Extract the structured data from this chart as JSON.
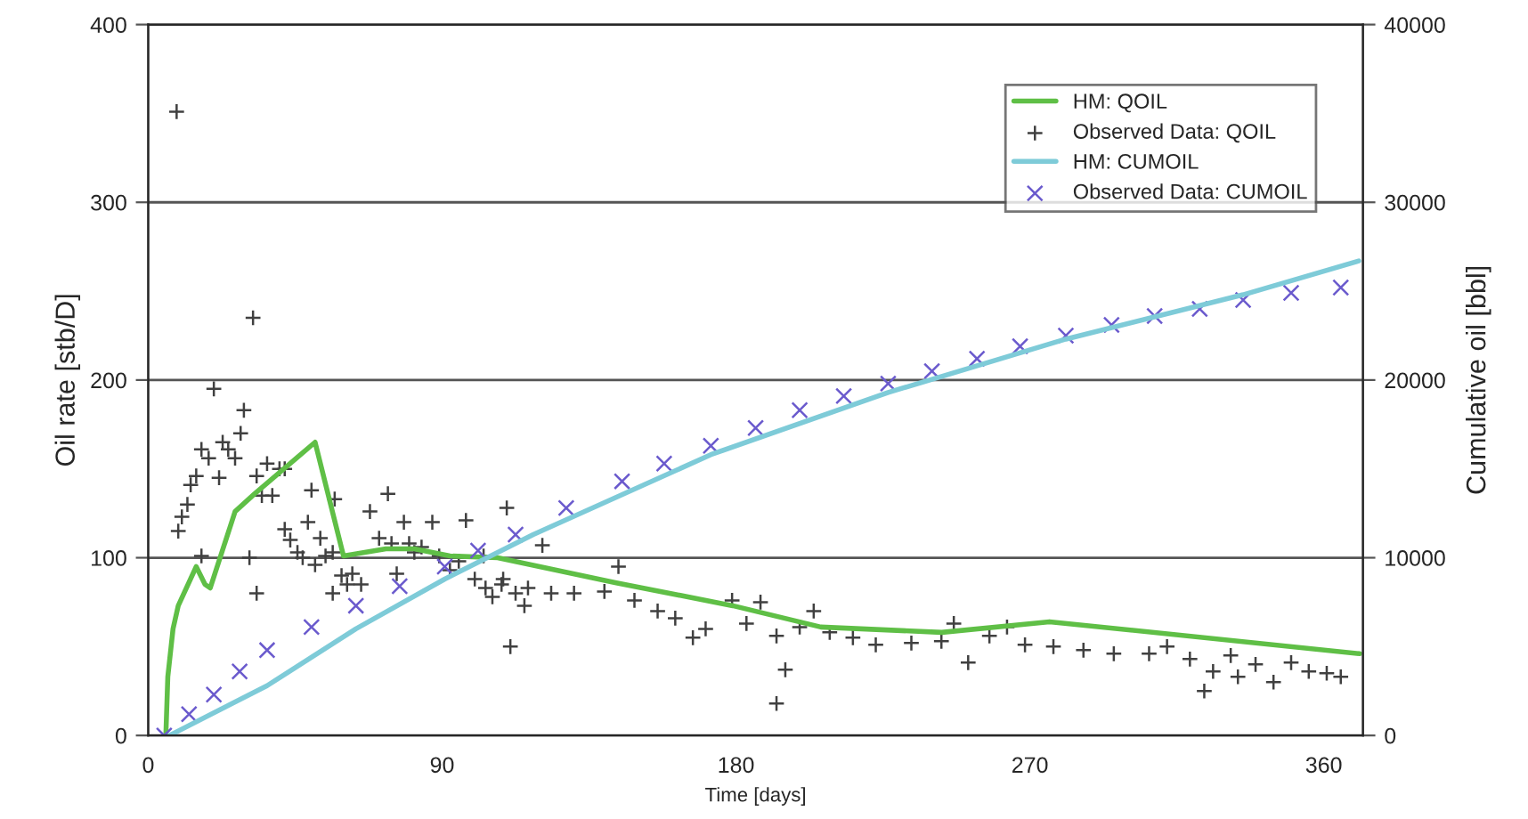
{
  "chart_data": {
    "type": "line",
    "xlabel": "Time [days]",
    "ylabel": "Oil rate [stb/D]",
    "y2label": "Cumulative oil [bbl]",
    "xlim": [
      0,
      372
    ],
    "xticks": [
      0,
      90,
      180,
      270,
      360
    ],
    "ylim": [
      0,
      400
    ],
    "yticks": [
      0,
      100,
      200,
      300,
      400
    ],
    "y2lim": [
      0,
      40000
    ],
    "y2ticks": [
      0,
      10000,
      20000,
      30000,
      40000
    ],
    "grid": "y",
    "legend": "top right",
    "series": [
      {
        "name": "HM: QOIL",
        "color": "#5fbf46",
        "marker": "none",
        "x": [
          5.4,
          6,
          7.6,
          9.2,
          14.7,
          17.4,
          19,
          26.6,
          32.6,
          51.1,
          59.8,
          72.8,
          81.5,
          92.4,
          107,
          143,
          179,
          206,
          243,
          276,
          371
        ],
        "values": [
          0,
          33,
          60,
          73,
          95,
          85,
          83,
          126,
          136,
          165,
          101,
          105,
          105,
          101,
          100,
          86,
          73,
          61,
          58,
          64,
          46
        ]
      },
      {
        "name": "Observed Data: QOIL",
        "type": "scatter",
        "color": "#404040",
        "marker": "cross",
        "x": [
          8.7,
          9.2,
          10.3,
          12,
          13,
          14.7,
          16.3,
          16.3,
          18.5,
          20.1,
          21.7,
          22.8,
          24.5,
          26.6,
          28.3,
          29.3,
          32.1,
          31,
          33.2,
          33.2,
          34.8,
          36.4,
          38,
          40.2,
          41.8,
          41.8,
          43.5,
          45.7,
          47.3,
          48.9,
          50,
          51.1,
          52.7,
          54.3,
          56.5,
          57.1,
          56.5,
          59.2,
          60.9,
          62.5,
          65.2,
          67.9,
          70.7,
          73.4,
          74.5,
          76.1,
          78.3,
          79.9,
          81.5,
          83.7,
          87,
          89.1,
          92.4,
          95.1,
          97.3,
          100,
          102.7,
          103.3,
          105.4,
          108.7,
          109.8,
          110.9,
          112.5,
          115.2,
          120.7,
          108.2,
          116.3,
          123.4,
          130.4,
          139.7,
          144,
          148.9,
          156,
          161.4,
          166.8,
          170.7,
          178.8,
          183.2,
          187.5,
          192.4,
          192.4,
          195.1,
          199.5,
          203.8,
          208.7,
          215.8,
          222.8,
          233.7,
          242.9,
          246.7,
          251.1,
          257.6,
          263,
          268.5,
          277.2,
          286.4,
          295.7,
          306.5,
          312,
          319,
          323.4,
          326.1,
          331.5,
          333.7,
          339.1,
          344.6,
          350,
          355.4,
          360.9,
          365.2
        ],
        "values": [
          351,
          115,
          123,
          130,
          141,
          146,
          161,
          101,
          156,
          195,
          145,
          165,
          161,
          156,
          170,
          183,
          235,
          100,
          80,
          146,
          135,
          153,
          135,
          150,
          150,
          116,
          110,
          103,
          100,
          120,
          138,
          96,
          111,
          101,
          103,
          133,
          80,
          90,
          85,
          91,
          85,
          126,
          111,
          136,
          108,
          91,
          120,
          108,
          103,
          106,
          120,
          101,
          93,
          98,
          121,
          88,
          101,
          83,
          78,
          88,
          128,
          50,
          80,
          73,
          107,
          85,
          83,
          80,
          80,
          81,
          95,
          76,
          70,
          66,
          55,
          60,
          76,
          63,
          75,
          56,
          18,
          37,
          61,
          70,
          58,
          55,
          51,
          52,
          53,
          63,
          41,
          56,
          61,
          51,
          50,
          48,
          46,
          46,
          50,
          43,
          25,
          36,
          45,
          33,
          40,
          30,
          41,
          36,
          35,
          33
        ]
      },
      {
        "name": "HM: CUMOIL",
        "axis": "y2",
        "color": "#7ecbd8",
        "marker": "none",
        "x": [
          6.5,
          36.4,
          63.6,
          90.8,
          117.9,
          172.3,
          226.6,
          281,
          335.3,
          370.7
        ],
        "values": [
          0,
          2800,
          6000,
          8800,
          11300,
          15800,
          19300,
          22300,
          24800,
          26700
        ]
      },
      {
        "name": "Observed Data: CUMOIL",
        "type": "scatter",
        "axis": "y2",
        "color": "#6a5acd",
        "marker": "x",
        "x": [
          4.9,
          12.5,
          20.1,
          28,
          36.4,
          50,
          63.6,
          77,
          90.8,
          101,
          112.5,
          128,
          145.1,
          158,
          172.3,
          186,
          199.5,
          213,
          226.6,
          240,
          253.8,
          267,
          281,
          295,
          308.2,
          322,
          335.3,
          350,
          365.2
        ],
        "values": [
          0,
          1200,
          2300,
          3600,
          4800,
          6100,
          7300,
          8400,
          9500,
          10400,
          11300,
          12800,
          14300,
          15300,
          16300,
          17300,
          18300,
          19100,
          19800,
          20500,
          21200,
          21900,
          22500,
          23100,
          23600,
          24000,
          24500,
          24900,
          25200
        ]
      }
    ]
  }
}
